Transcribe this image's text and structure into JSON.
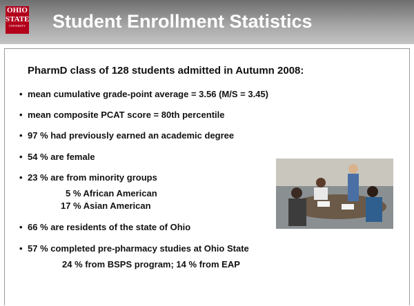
{
  "header": {
    "logo": [
      "OHIO",
      "STATE",
      "UNIVERSITY"
    ],
    "title": "Student Enrollment Statistics"
  },
  "intro": "PharmD class of 128 students admitted in Autumn 2008:",
  "bullets": [
    {
      "text": "mean cumulative grade-point average = 3.56 (M/S = 3.45)",
      "sub": []
    },
    {
      "text": "mean composite PCAT score = 80th percentile",
      "sub": []
    },
    {
      "text": "97 % had previously earned an academic degree",
      "sub": []
    },
    {
      "text": "54 % are female",
      "sub": []
    },
    {
      "text": "23 % are from minority groups",
      "sub": [
        "5 % African American",
        "17 % Asian American"
      ]
    },
    {
      "text": "66 % are residents of the state of Ohio",
      "sub": []
    },
    {
      "text": "57 % completed pre-pharmacy studies at Ohio State",
      "sub": [
        "24 % from BSPS program; 14 % from EAP"
      ]
    }
  ]
}
